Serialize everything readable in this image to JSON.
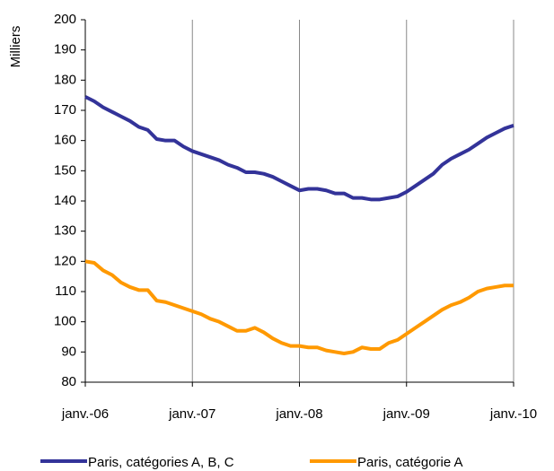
{
  "chart_data": {
    "type": "line",
    "y_label": "Milliers",
    "categories": [
      "janv.-06",
      null,
      null,
      null,
      null,
      null,
      null,
      null,
      null,
      null,
      null,
      null,
      "janv.-07",
      null,
      null,
      null,
      null,
      null,
      null,
      null,
      null,
      null,
      null,
      null,
      "janv.-08",
      null,
      null,
      null,
      null,
      null,
      null,
      null,
      null,
      null,
      null,
      null,
      "janv.-09",
      null,
      null,
      null,
      null,
      null,
      null,
      null,
      null,
      null,
      null,
      null,
      "janv.-10"
    ],
    "series": [
      {
        "name": "Paris, catégories A, B, C",
        "color": "#333399",
        "values": [
          174.5,
          173,
          171,
          169.5,
          168,
          166.5,
          164.5,
          163.5,
          160.5,
          160,
          160,
          158,
          156.5,
          155.5,
          154.5,
          153.5,
          152,
          151,
          149.5,
          149.5,
          149,
          148,
          146.5,
          145,
          143.5,
          144,
          144,
          143.5,
          142.5,
          142.5,
          141,
          141,
          140.5,
          140.5,
          141,
          141.5,
          143,
          145,
          147,
          149,
          152,
          154,
          155.5,
          157,
          159,
          161,
          162.5,
          164,
          165
        ]
      },
      {
        "name": "Paris, catégorie A",
        "color": "#ff9900",
        "values": [
          120,
          119.5,
          117,
          115.5,
          113,
          111.5,
          110.5,
          110.5,
          107,
          106.5,
          105.5,
          104.5,
          103.5,
          102.5,
          101,
          100,
          98.5,
          97,
          97,
          98,
          96.5,
          94.5,
          93,
          92,
          92,
          91.5,
          91.5,
          90.5,
          90,
          89.5,
          90,
          91.5,
          91,
          91,
          93,
          94,
          96,
          98,
          100,
          102,
          104,
          105.5,
          106.5,
          108,
          110,
          111,
          111.5,
          112,
          112
        ]
      }
    ],
    "ylim": [
      80,
      200
    ],
    "yticks": [
      80,
      90,
      100,
      110,
      120,
      130,
      140,
      150,
      160,
      170,
      180,
      190,
      200
    ],
    "grid": "x",
    "legend": "bottom"
  }
}
